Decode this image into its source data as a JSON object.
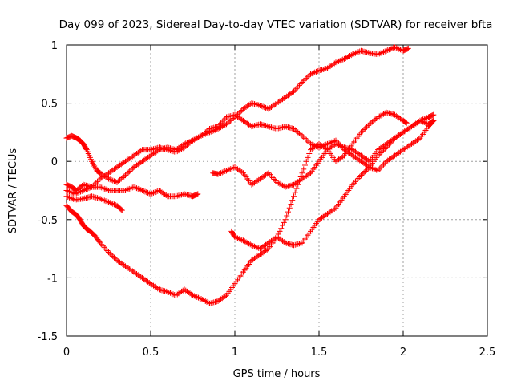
{
  "chart_data": {
    "type": "scatter",
    "title": "Day 099 of 2023, Sidereal Day-to-day VTEC variation (SDTVAR) for receiver bfta",
    "xlabel": "GPS time / hours",
    "ylabel": "SDTVAR / TECUs",
    "xlim": [
      0,
      2.5
    ],
    "ylim": [
      -1.5,
      1
    ],
    "x_ticks": [
      0,
      0.5,
      1,
      1.5,
      2,
      2.5
    ],
    "x_tick_labels": [
      "0",
      "0.5",
      "1",
      "1.5",
      "2",
      "2.5"
    ],
    "y_ticks": [
      -1.5,
      -1,
      -0.5,
      0,
      0.5,
      1
    ],
    "y_tick_labels": [
      "-1.5",
      "-1",
      "-0.5",
      "0",
      "0.5",
      "1"
    ],
    "grid": true,
    "marker": "+",
    "marker_color": "#ff0000",
    "series": [
      {
        "x": [
          0.0,
          0.03,
          0.06,
          0.08,
          0.1,
          0.12,
          0.14,
          0.17,
          0.2,
          0.25,
          0.3,
          0.35,
          0.4,
          0.45,
          0.5,
          0.55,
          0.6,
          0.65,
          0.7,
          0.75,
          0.8,
          0.85,
          0.9,
          0.95,
          1.0,
          1.05,
          1.1,
          1.15,
          1.2,
          1.25,
          1.3,
          1.35,
          1.4,
          1.45,
          1.5,
          1.55,
          1.6,
          1.65,
          1.7,
          1.75,
          1.8,
          1.85,
          1.9,
          1.95,
          2.0,
          2.02
        ],
        "y": [
          -0.38,
          -0.43,
          -0.46,
          -0.5,
          -0.55,
          -0.58,
          -0.6,
          -0.64,
          -0.7,
          -0.78,
          -0.85,
          -0.9,
          -0.95,
          -1.0,
          -1.05,
          -1.1,
          -1.12,
          -1.15,
          -1.1,
          -1.15,
          -1.18,
          -1.22,
          -1.2,
          -1.15,
          -1.05,
          -0.95,
          -0.85,
          -0.8,
          -0.75,
          -0.65,
          -0.5,
          -0.3,
          -0.1,
          0.1,
          0.15,
          0.1,
          0.0,
          0.05,
          0.15,
          0.25,
          0.32,
          0.38,
          0.42,
          0.4,
          0.35,
          0.33
        ]
      },
      {
        "x": [
          0.0,
          0.03,
          0.06,
          0.08,
          0.1,
          0.12,
          0.15,
          0.18,
          0.2,
          0.25,
          0.3,
          0.35,
          0.4,
          0.45,
          0.5,
          0.55,
          0.6,
          0.65,
          0.7,
          0.75,
          0.8,
          0.85,
          0.9,
          0.95,
          1.0,
          1.05,
          1.1,
          1.15,
          1.2,
          1.25,
          1.3,
          1.35,
          1.4,
          1.45,
          1.5,
          1.55,
          1.6,
          1.65,
          1.7,
          1.75,
          1.8,
          1.85,
          1.9,
          1.95,
          2.0,
          2.03
        ],
        "y": [
          0.2,
          0.22,
          0.2,
          0.18,
          0.15,
          0.1,
          0.0,
          -0.08,
          -0.1,
          -0.15,
          -0.18,
          -0.12,
          -0.05,
          0.0,
          0.05,
          0.1,
          0.12,
          0.1,
          0.15,
          0.18,
          0.22,
          0.25,
          0.28,
          0.32,
          0.38,
          0.45,
          0.5,
          0.48,
          0.45,
          0.5,
          0.55,
          0.6,
          0.68,
          0.75,
          0.78,
          0.8,
          0.85,
          0.88,
          0.92,
          0.95,
          0.93,
          0.92,
          0.95,
          0.98,
          0.95,
          0.97
        ]
      },
      {
        "x": [
          0.0,
          0.03,
          0.06,
          0.1,
          0.15,
          0.2,
          0.25,
          0.3,
          0.35,
          0.4,
          0.45,
          0.5,
          0.55,
          0.6,
          0.65,
          0.7,
          0.75,
          0.8,
          0.85,
          0.9,
          0.95,
          1.0,
          1.05,
          1.1,
          1.15,
          1.2,
          1.25,
          1.3,
          1.35,
          1.4,
          1.45,
          1.5,
          1.55,
          1.6,
          1.65,
          1.7,
          1.75,
          1.8,
          1.85,
          1.9,
          1.95,
          2.0,
          2.05,
          2.1,
          2.15,
          2.18
        ],
        "y": [
          -0.2,
          -0.22,
          -0.25,
          -0.2,
          -0.22,
          -0.15,
          -0.1,
          -0.05,
          0.0,
          0.05,
          0.1,
          0.1,
          0.12,
          0.1,
          0.08,
          0.12,
          0.18,
          0.22,
          0.28,
          0.3,
          0.38,
          0.4,
          0.35,
          0.3,
          0.32,
          0.3,
          0.28,
          0.3,
          0.28,
          0.22,
          0.15,
          0.12,
          0.15,
          0.18,
          0.1,
          0.05,
          0.0,
          -0.05,
          -0.08,
          0.0,
          0.05,
          0.1,
          0.15,
          0.2,
          0.3,
          0.35
        ]
      },
      {
        "x": [
          0.0,
          0.05,
          0.1,
          0.15,
          0.2,
          0.25,
          0.3,
          0.35,
          0.4,
          0.45,
          0.5,
          0.55,
          0.6,
          0.65,
          0.7,
          0.75,
          0.78
        ],
        "y": [
          -0.25,
          -0.28,
          -0.25,
          -0.22,
          -0.22,
          -0.25,
          -0.25,
          -0.25,
          -0.22,
          -0.25,
          -0.28,
          -0.25,
          -0.3,
          -0.3,
          -0.28,
          -0.3,
          -0.28
        ]
      },
      {
        "x": [
          0.0,
          0.05,
          0.1,
          0.15,
          0.2,
          0.25,
          0.3,
          0.33
        ],
        "y": [
          -0.3,
          -0.33,
          -0.32,
          -0.3,
          -0.32,
          -0.35,
          -0.38,
          -0.42
        ]
      },
      {
        "x": [
          0.87,
          0.9,
          0.95,
          1.0,
          1.05,
          1.1,
          1.15,
          1.2,
          1.25,
          1.3,
          1.35,
          1.4,
          1.45,
          1.5,
          1.55,
          1.6,
          1.65,
          1.7,
          1.75,
          1.8,
          1.85,
          1.9,
          1.95,
          2.0,
          2.05,
          2.1,
          2.15,
          2.18
        ],
        "y": [
          -0.1,
          -0.11,
          -0.08,
          -0.05,
          -0.1,
          -0.2,
          -0.15,
          -0.1,
          -0.18,
          -0.22,
          -0.2,
          -0.15,
          -0.1,
          0.0,
          0.1,
          0.15,
          0.12,
          0.1,
          0.05,
          0.0,
          0.1,
          0.15,
          0.2,
          0.25,
          0.3,
          0.35,
          0.32,
          0.35
        ]
      },
      {
        "x": [
          0.98,
          1.0,
          1.05,
          1.1,
          1.15,
          1.2,
          1.25,
          1.3,
          1.35,
          1.4,
          1.45,
          1.5,
          1.55,
          1.6,
          1.65,
          1.7,
          1.75,
          1.8,
          1.85,
          1.9,
          1.95,
          2.0,
          2.05,
          2.1,
          2.15,
          2.18
        ],
        "y": [
          -0.6,
          -0.65,
          -0.68,
          -0.72,
          -0.75,
          -0.7,
          -0.65,
          -0.7,
          -0.72,
          -0.7,
          -0.6,
          -0.5,
          -0.45,
          -0.4,
          -0.3,
          -0.2,
          -0.12,
          -0.05,
          0.05,
          0.12,
          0.2,
          0.25,
          0.3,
          0.35,
          0.38,
          0.4
        ]
      }
    ]
  }
}
